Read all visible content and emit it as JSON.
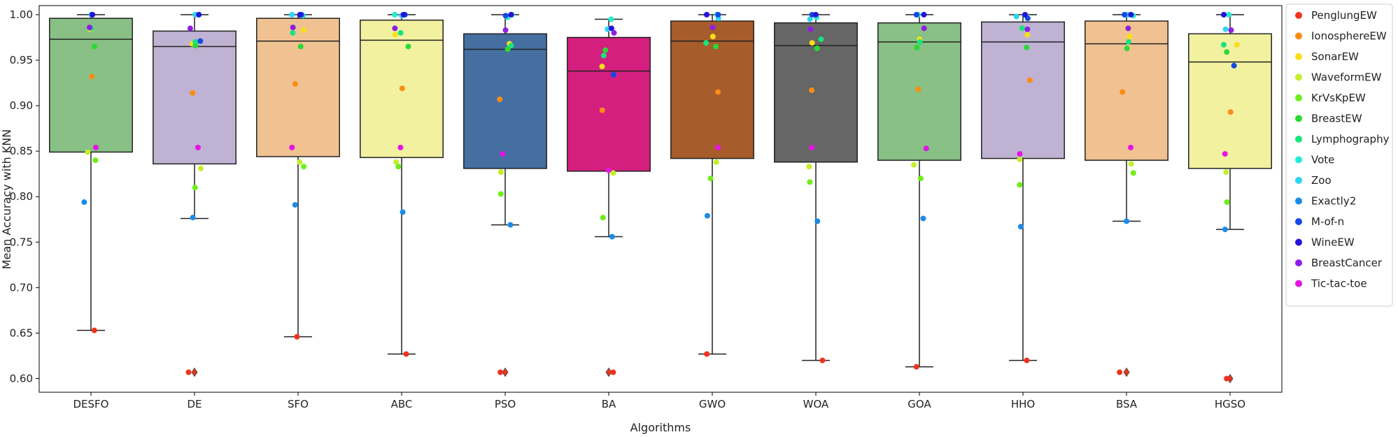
{
  "chart_data": {
    "type": "box",
    "xlabel": "Algorithms",
    "ylabel": "Mean Accuracy with KNN",
    "ylim": [
      0.585,
      1.01
    ],
    "yticks": [
      "0.60",
      "0.65",
      "0.70",
      "0.75",
      "0.80",
      "0.85",
      "0.90",
      "0.95",
      "1.00"
    ],
    "ytick_values": [
      0.6,
      0.65,
      0.7,
      0.75,
      0.8,
      0.85,
      0.9,
      0.95,
      1.0
    ],
    "grid": false,
    "legend_position": "right",
    "categories": [
      "DESFO",
      "DE",
      "SFO",
      "ABC",
      "PSO",
      "BA",
      "GWO",
      "WOA",
      "GOA",
      "HHO",
      "BSA",
      "HGSO"
    ],
    "box_colors": [
      "#88c085",
      "#bfb2d3",
      "#f0c191",
      "#f1f1a0",
      "#456fa1",
      "#d41f7f",
      "#a75c2b",
      "#666666",
      "#88c085",
      "#bfb2d3",
      "#f0c191",
      "#f1f1a0"
    ],
    "boxes": [
      {
        "name": "DESFO",
        "whisker_low": 0.653,
        "q1": 0.849,
        "median": 0.973,
        "q3": 0.996,
        "whisker_high": 1.0,
        "outliers": []
      },
      {
        "name": "DE",
        "whisker_low": 0.776,
        "q1": 0.836,
        "median": 0.965,
        "q3": 0.982,
        "whisker_high": 1.0,
        "outliers": [
          0.607
        ]
      },
      {
        "name": "SFO",
        "whisker_low": 0.646,
        "q1": 0.844,
        "median": 0.971,
        "q3": 0.996,
        "whisker_high": 1.0,
        "outliers": []
      },
      {
        "name": "ABC",
        "whisker_low": 0.627,
        "q1": 0.843,
        "median": 0.972,
        "q3": 0.994,
        "whisker_high": 1.0,
        "outliers": []
      },
      {
        "name": "PSO",
        "whisker_low": 0.769,
        "q1": 0.831,
        "median": 0.962,
        "q3": 0.979,
        "whisker_high": 1.0,
        "outliers": [
          0.607
        ]
      },
      {
        "name": "BA",
        "whisker_low": 0.756,
        "q1": 0.828,
        "median": 0.938,
        "q3": 0.975,
        "whisker_high": 0.995,
        "outliers": [
          0.607
        ]
      },
      {
        "name": "GWO",
        "whisker_low": 0.627,
        "q1": 0.842,
        "median": 0.971,
        "q3": 0.993,
        "whisker_high": 1.0,
        "outliers": []
      },
      {
        "name": "WOA",
        "whisker_low": 0.62,
        "q1": 0.838,
        "median": 0.966,
        "q3": 0.991,
        "whisker_high": 1.0,
        "outliers": []
      },
      {
        "name": "GOA",
        "whisker_low": 0.613,
        "q1": 0.84,
        "median": 0.97,
        "q3": 0.991,
        "whisker_high": 1.0,
        "outliers": []
      },
      {
        "name": "HHO",
        "whisker_low": 0.62,
        "q1": 0.842,
        "median": 0.97,
        "q3": 0.992,
        "whisker_high": 1.0,
        "outliers": []
      },
      {
        "name": "BSA",
        "whisker_low": 0.773,
        "q1": 0.84,
        "median": 0.968,
        "q3": 0.993,
        "whisker_high": 1.0,
        "outliers": [
          0.607
        ]
      },
      {
        "name": "HGSO",
        "whisker_low": 0.764,
        "q1": 0.831,
        "median": 0.948,
        "q3": 0.979,
        "whisker_high": 1.0,
        "outliers": [
          0.6
        ]
      }
    ],
    "series": [
      {
        "name": "PenglungEW",
        "color": "#f0331f",
        "values": [
          0.653,
          0.607,
          0.646,
          0.627,
          0.607,
          0.607,
          0.627,
          0.62,
          0.613,
          0.62,
          0.607,
          0.6
        ]
      },
      {
        "name": "IonosphereEW",
        "color": "#fb8c12",
        "values": [
          0.932,
          0.914,
          0.924,
          0.919,
          0.907,
          0.895,
          0.915,
          0.917,
          0.918,
          0.928,
          0.915,
          0.893
        ]
      },
      {
        "name": "SonarEW",
        "color": "#f7e01a",
        "values": [
          0.984,
          0.968,
          0.983,
          0.978,
          0.968,
          0.943,
          0.976,
          0.969,
          0.973,
          0.978,
          0.976,
          0.967
        ]
      },
      {
        "name": "WaveformEW",
        "color": "#c3ee2a",
        "values": [
          0.849,
          0.831,
          0.838,
          0.838,
          0.827,
          0.826,
          0.838,
          0.833,
          0.835,
          0.841,
          0.836,
          0.827
        ]
      },
      {
        "name": "KrVsKpEW",
        "color": "#6dee1a",
        "values": [
          0.84,
          0.81,
          0.833,
          0.833,
          0.803,
          0.777,
          0.82,
          0.816,
          0.82,
          0.813,
          0.826,
          0.794
        ]
      },
      {
        "name": "BreastEW",
        "color": "#2bd936",
        "values": [
          0.965,
          0.966,
          0.965,
          0.965,
          0.962,
          0.961,
          0.965,
          0.963,
          0.964,
          0.964,
          0.963,
          0.959
        ]
      },
      {
        "name": "Lymphography",
        "color": "#16e47c",
        "values": [
          0.985,
          0.97,
          0.98,
          0.98,
          0.966,
          0.955,
          0.969,
          0.973,
          0.97,
          0.985,
          0.97,
          0.967
        ]
      },
      {
        "name": "Vote",
        "color": "#22ecd0",
        "values": [
          1.0,
          1.0,
          0.999,
          1.0,
          0.997,
          0.995,
          1.0,
          0.997,
          1.0,
          0.999,
          0.999,
          1.0
        ]
      },
      {
        "name": "Zoo",
        "color": "#2cd6f5",
        "values": [
          1.0,
          1.0,
          1.0,
          0.999,
          1.0,
          0.984,
          0.996,
          0.995,
          1.0,
          0.998,
          1.0,
          0.984
        ]
      },
      {
        "name": "Exactly2",
        "color": "#1b8be8",
        "values": [
          0.794,
          0.777,
          0.791,
          0.783,
          0.769,
          0.756,
          0.779,
          0.773,
          0.776,
          0.767,
          0.773,
          0.764
        ]
      },
      {
        "name": "M-of-n",
        "color": "#1349e6",
        "values": [
          1.0,
          0.971,
          1.0,
          1.0,
          0.999,
          0.934,
          1.0,
          1.0,
          1.0,
          0.996,
          1.0,
          0.944
        ]
      },
      {
        "name": "WineEW",
        "color": "#2414d9",
        "values": [
          1.0,
          1.0,
          1.0,
          1.0,
          1.0,
          0.985,
          1.0,
          1.0,
          1.0,
          1.0,
          1.0,
          1.0
        ]
      },
      {
        "name": "BreastCancer",
        "color": "#8d1ee6",
        "values": [
          0.986,
          0.985,
          0.986,
          0.985,
          0.983,
          0.98,
          0.986,
          0.984,
          0.985,
          0.984,
          0.985,
          0.983
        ]
      },
      {
        "name": "Tic-tac-toe",
        "color": "#e514e5",
        "values": [
          0.854,
          0.854,
          0.854,
          0.854,
          0.847,
          0.829,
          0.854,
          0.854,
          0.853,
          0.847,
          0.854,
          0.847
        ]
      }
    ]
  }
}
